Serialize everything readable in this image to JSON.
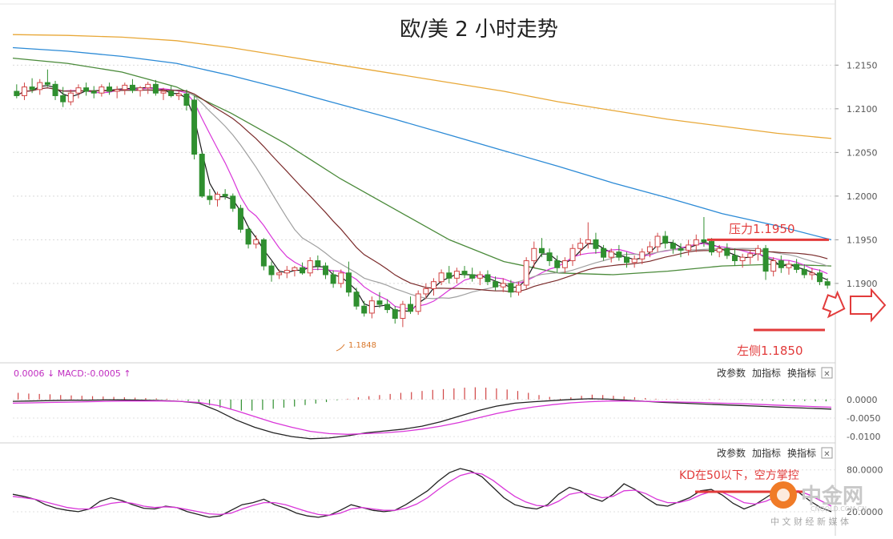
{
  "chart_data": {
    "type": "candlestick",
    "title": "欧/美 2 小时走势",
    "ylim": [
      1.181,
      1.222
    ],
    "y_ticks": [
      1.215,
      1.21,
      1.205,
      1.2,
      1.195,
      1.19
    ],
    "y_tick_labels": [
      "1.2150",
      "1.2100",
      "1.2050",
      "1.2000",
      "1.1950",
      "1.1900"
    ],
    "candles": [
      [
        1.212,
        1.2128,
        1.2112,
        1.2115
      ],
      [
        1.2115,
        1.213,
        1.211,
        1.2125
      ],
      [
        1.2125,
        1.2135,
        1.2118,
        1.2122
      ],
      [
        1.2122,
        1.2134,
        1.2116,
        1.213
      ],
      [
        1.213,
        1.2145,
        1.2125,
        1.2128
      ],
      [
        1.2128,
        1.2132,
        1.211,
        1.2115
      ],
      [
        1.2115,
        1.2125,
        1.2102,
        1.2108
      ],
      [
        1.2108,
        1.2122,
        1.2104,
        1.2118
      ],
      [
        1.2118,
        1.2128,
        1.2112,
        1.2124
      ],
      [
        1.2124,
        1.213,
        1.2115,
        1.212
      ],
      [
        1.212,
        1.2126,
        1.2112,
        1.2118
      ],
      [
        1.2118,
        1.2128,
        1.2114,
        1.2125
      ],
      [
        1.2125,
        1.213,
        1.2116,
        1.212
      ],
      [
        1.212,
        1.2126,
        1.2112,
        1.2122
      ],
      [
        1.2122,
        1.213,
        1.2116,
        1.2127
      ],
      [
        1.2127,
        1.2134,
        1.2118,
        1.2121
      ],
      [
        1.2121,
        1.2126,
        1.2114,
        1.2124
      ],
      [
        1.2124,
        1.2131,
        1.2117,
        1.2128
      ],
      [
        1.2128,
        1.2133,
        1.2115,
        1.2118
      ],
      [
        1.2118,
        1.2124,
        1.211,
        1.212
      ],
      [
        1.212,
        1.2126,
        1.2113,
        1.2115
      ],
      [
        1.2115,
        1.212,
        1.211,
        1.2117
      ],
      [
        1.2117,
        1.2122,
        1.2098,
        1.2104
      ],
      [
        1.211,
        1.2115,
        1.2042,
        1.2048
      ],
      [
        1.2048,
        1.205,
        1.1998,
        1.2
      ],
      [
        1.2,
        1.2008,
        1.199,
        1.1996
      ],
      [
        1.1996,
        1.2005,
        1.1988,
        1.2002
      ],
      [
        1.2002,
        1.2008,
        1.1996,
        1.2
      ],
      [
        1.2,
        1.2003,
        1.1982,
        1.1986
      ],
      [
        1.1986,
        1.199,
        1.1958,
        1.1962
      ],
      [
        1.1962,
        1.1966,
        1.194,
        1.1945
      ],
      [
        1.1945,
        1.1955,
        1.194,
        1.195
      ],
      [
        1.195,
        1.1952,
        1.1915,
        1.192
      ],
      [
        1.192,
        1.1925,
        1.1902,
        1.191
      ],
      [
        1.191,
        1.1916,
        1.1905,
        1.1912
      ],
      [
        1.1912,
        1.192,
        1.1906,
        1.1915
      ],
      [
        1.1915,
        1.192,
        1.1908,
        1.1918
      ],
      [
        1.1918,
        1.1924,
        1.191,
        1.1912
      ],
      [
        1.1912,
        1.193,
        1.1908,
        1.1926
      ],
      [
        1.1926,
        1.1932,
        1.1915,
        1.192
      ],
      [
        1.192,
        1.1924,
        1.1905,
        1.191
      ],
      [
        1.191,
        1.1915,
        1.1895,
        1.19
      ],
      [
        1.19,
        1.1916,
        1.1895,
        1.1912
      ],
      [
        1.1912,
        1.1925,
        1.1885,
        1.189
      ],
      [
        1.189,
        1.1895,
        1.187,
        1.1874
      ],
      [
        1.1874,
        1.188,
        1.1862,
        1.1866
      ],
      [
        1.1866,
        1.1885,
        1.186,
        1.188
      ],
      [
        1.188,
        1.189,
        1.1872,
        1.1876
      ],
      [
        1.1876,
        1.1882,
        1.1866,
        1.187
      ],
      [
        1.187,
        1.1874,
        1.1854,
        1.186
      ],
      [
        1.186,
        1.188,
        1.185,
        1.1876
      ],
      [
        1.1876,
        1.1885,
        1.1865,
        1.1868
      ],
      [
        1.1868,
        1.1892,
        1.1864,
        1.1888
      ],
      [
        1.1888,
        1.19,
        1.1882,
        1.1894
      ],
      [
        1.1894,
        1.1906,
        1.1886,
        1.1902
      ],
      [
        1.1902,
        1.1916,
        1.1898,
        1.1912
      ],
      [
        1.1912,
        1.192,
        1.19,
        1.1906
      ],
      [
        1.1906,
        1.1918,
        1.19,
        1.1914
      ],
      [
        1.1914,
        1.192,
        1.1906,
        1.191
      ],
      [
        1.191,
        1.1918,
        1.1902,
        1.1906
      ],
      [
        1.1906,
        1.1914,
        1.1898,
        1.191
      ],
      [
        1.191,
        1.1915,
        1.1898,
        1.1902
      ],
      [
        1.1902,
        1.1908,
        1.1892,
        1.1896
      ],
      [
        1.1896,
        1.1906,
        1.189,
        1.19
      ],
      [
        1.19,
        1.1904,
        1.1884,
        1.189
      ],
      [
        1.189,
        1.1902,
        1.1886,
        1.1898
      ],
      [
        1.1898,
        1.193,
        1.1894,
        1.1926
      ],
      [
        1.1926,
        1.1948,
        1.1918,
        1.194
      ],
      [
        1.194,
        1.1952,
        1.193,
        1.1935
      ],
      [
        1.1935,
        1.194,
        1.192,
        1.1926
      ],
      [
        1.1926,
        1.1932,
        1.1912,
        1.1918
      ],
      [
        1.1918,
        1.193,
        1.1912,
        1.1926
      ],
      [
        1.1926,
        1.1945,
        1.192,
        1.194
      ],
      [
        1.194,
        1.1952,
        1.1932,
        1.1946
      ],
      [
        1.1946,
        1.197,
        1.194,
        1.195
      ],
      [
        1.195,
        1.1958,
        1.1934,
        1.194
      ],
      [
        1.194,
        1.1944,
        1.1926,
        1.193
      ],
      [
        1.193,
        1.194,
        1.1924,
        1.1936
      ],
      [
        1.1936,
        1.1944,
        1.1926,
        1.193
      ],
      [
        1.193,
        1.1936,
        1.1918,
        1.1924
      ],
      [
        1.1924,
        1.1932,
        1.1918,
        1.1928
      ],
      [
        1.1928,
        1.194,
        1.1922,
        1.1936
      ],
      [
        1.1936,
        1.1948,
        1.193,
        1.1942
      ],
      [
        1.1942,
        1.1958,
        1.1936,
        1.1954
      ],
      [
        1.1954,
        1.196,
        1.194,
        1.1946
      ],
      [
        1.1946,
        1.195,
        1.1934,
        1.194
      ],
      [
        1.194,
        1.1946,
        1.193,
        1.1938
      ],
      [
        1.1938,
        1.195,
        1.1932,
        1.1944
      ],
      [
        1.1944,
        1.1956,
        1.1936,
        1.195
      ],
      [
        1.195,
        1.1976,
        1.1942,
        1.1948
      ],
      [
        1.1948,
        1.1952,
        1.1932,
        1.1936
      ],
      [
        1.1936,
        1.1944,
        1.193,
        1.194
      ],
      [
        1.194,
        1.1946,
        1.1928,
        1.1932
      ],
      [
        1.1932,
        1.194,
        1.192,
        1.1926
      ],
      [
        1.1926,
        1.1934,
        1.1918,
        1.193
      ],
      [
        1.193,
        1.1938,
        1.1922,
        1.1934
      ],
      [
        1.1934,
        1.1944,
        1.1926,
        1.194
      ],
      [
        1.194,
        1.1944,
        1.1904,
        1.1914
      ],
      [
        1.1914,
        1.193,
        1.1908,
        1.1926
      ],
      [
        1.1926,
        1.1932,
        1.1912,
        1.1918
      ],
      [
        1.1918,
        1.1926,
        1.191,
        1.1922
      ],
      [
        1.1922,
        1.1928,
        1.1912,
        1.1916
      ],
      [
        1.1916,
        1.1922,
        1.1906,
        1.191
      ],
      [
        1.191,
        1.1918,
        1.1904,
        1.1912
      ],
      [
        1.1912,
        1.1916,
        1.1898,
        1.1902
      ],
      [
        1.1902,
        1.1906,
        1.1894,
        1.1898
      ]
    ],
    "moving_averages": [
      {
        "color": "#1a1a1a",
        "smooth": 3
      },
      {
        "color": "#d936d9",
        "smooth": 7
      },
      {
        "color": "#a0a0a0",
        "smooth": 14
      },
      {
        "color": "#7a2a2a",
        "smooth": 22
      }
    ],
    "long_averages": [
      {
        "color": "#4a8a3a",
        "values": [
          1.2158,
          1.2152,
          1.2142,
          1.2125,
          1.2095,
          1.206,
          1.202,
          1.1985,
          1.195,
          1.1925,
          1.1912,
          1.191,
          1.1914,
          1.192,
          1.1922,
          1.192
        ]
      },
      {
        "color": "#2b8ad6",
        "values": [
          1.217,
          1.2166,
          1.216,
          1.2152,
          1.2138,
          1.2122,
          1.2105,
          1.2088,
          1.207,
          1.2052,
          1.2034,
          1.2015,
          1.1998,
          1.198,
          1.1966,
          1.195
        ]
      },
      {
        "color": "#e8a838",
        "values": [
          1.2185,
          1.2184,
          1.2182,
          1.2178,
          1.217,
          1.216,
          1.215,
          1.214,
          1.213,
          1.212,
          1.2108,
          1.2098,
          1.2088,
          1.208,
          1.2072,
          1.2066
        ]
      }
    ],
    "annotations": {
      "low_label": "1.1848",
      "resistance_label": "压力1.1950",
      "support_label": "左侧1.1850",
      "kd_note": "KD在50以下，空方掌控"
    },
    "macd": {
      "header": "0.0006 ↓ MACD:-0.0005 ↑",
      "ylim": [
        -0.0115,
        0.0045
      ],
      "y_ticks": [
        0.0,
        -0.005,
        -0.01
      ],
      "y_tick_labels": [
        "0.0000",
        "-0.0050",
        "-0.0100"
      ],
      "histogram": [
        0.0018,
        0.0016,
        0.0015,
        0.0014,
        0.0012,
        0.0011,
        0.001,
        0.0009,
        0.0008,
        0.0007,
        0.0006,
        0.0005,
        0.0004,
        0.0003,
        0.0002,
        0.0001,
        -0.0004,
        -0.001,
        -0.0016,
        -0.0022,
        -0.0026,
        -0.003,
        -0.003,
        -0.0028,
        -0.0025,
        -0.0022,
        -0.0019,
        -0.0015,
        -0.0011,
        -0.0007,
        -0.0002,
        0.0002,
        0.0006,
        0.0009,
        0.0012,
        0.0015,
        0.0018,
        0.002,
        0.0023,
        0.0026,
        0.0028,
        0.003,
        0.0032,
        0.0033,
        0.0032,
        0.003,
        0.0027,
        0.0023,
        0.0018,
        0.0012,
        0.0007,
        0.0002,
        0.0006,
        0.001,
        0.0013,
        0.0012,
        0.001,
        0.0008,
        0.0006,
        0.0004,
        0.0002,
        0.0001,
        0.0001,
        0.0,
        0.0,
        0.0001,
        0.0001,
        0.0,
        -0.0001,
        -0.0001,
        -0.0002,
        -0.0003,
        -0.0003,
        -0.0004,
        -0.0004,
        -0.0005,
        -0.0005
      ],
      "dif": [
        -0.0005,
        -0.0004,
        -0.0003,
        -0.0002,
        -0.0002,
        -0.0001,
        -0.0001,
        -0.0002,
        -0.0003,
        -0.0005,
        -0.001,
        -0.003,
        -0.0055,
        -0.0075,
        -0.009,
        -0.01,
        -0.0106,
        -0.0104,
        -0.0098,
        -0.009,
        -0.0085,
        -0.008,
        -0.0072,
        -0.006,
        -0.0045,
        -0.003,
        -0.0018,
        -0.001,
        -0.0006,
        -0.0003,
        0.0,
        0.0002,
        0.0001,
        -0.0002,
        -0.0005,
        -0.0008,
        -0.001,
        -0.0012,
        -0.0014,
        -0.0016,
        -0.0018,
        -0.002,
        -0.0022,
        -0.0024,
        -0.0026
      ],
      "dea": [
        -0.001,
        -0.0009,
        -0.0008,
        -0.0007,
        -0.0006,
        -0.0005,
        -0.0004,
        -0.0004,
        -0.0004,
        -0.0005,
        -0.0008,
        -0.0016,
        -0.003,
        -0.0046,
        -0.0062,
        -0.0075,
        -0.0086,
        -0.0092,
        -0.0094,
        -0.0092,
        -0.009,
        -0.0086,
        -0.008,
        -0.0072,
        -0.0062,
        -0.005,
        -0.0038,
        -0.0028,
        -0.002,
        -0.0014,
        -0.0009,
        -0.0006,
        -0.0004,
        -0.0004,
        -0.0005,
        -0.0006,
        -0.0007,
        -0.0008,
        -0.001,
        -0.0011,
        -0.0013,
        -0.0015,
        -0.0017,
        -0.0019,
        -0.0021
      ]
    },
    "kd": {
      "ylim": [
        5,
        90
      ],
      "y_ticks": [
        80,
        20
      ],
      "y_tick_labels": [
        "80.0000",
        "20.0000"
      ],
      "k": [
        45,
        42,
        38,
        30,
        25,
        22,
        20,
        24,
        35,
        40,
        36,
        30,
        25,
        24,
        28,
        26,
        20,
        16,
        12,
        14,
        22,
        30,
        33,
        38,
        30,
        25,
        18,
        14,
        12,
        15,
        22,
        30,
        26,
        22,
        20,
        22,
        30,
        40,
        50,
        64,
        76,
        82,
        78,
        70,
        55,
        40,
        30,
        26,
        24,
        30,
        45,
        55,
        50,
        40,
        35,
        45,
        60,
        52,
        40,
        30,
        28,
        34,
        40,
        50,
        52,
        44,
        32,
        24,
        30,
        40,
        50,
        55,
        48,
        36,
        26,
        20
      ],
      "d": [
        42,
        40,
        38,
        34,
        30,
        26,
        24,
        24,
        28,
        32,
        34,
        32,
        28,
        26,
        27,
        26,
        23,
        20,
        17,
        16,
        18,
        24,
        29,
        33,
        33,
        30,
        25,
        20,
        16,
        15,
        18,
        24,
        26,
        24,
        22,
        22,
        25,
        31,
        40,
        52,
        63,
        72,
        76,
        74,
        65,
        53,
        42,
        34,
        29,
        28,
        35,
        45,
        48,
        45,
        40,
        42,
        50,
        51,
        46,
        38,
        33,
        33,
        37,
        44,
        49,
        48,
        41,
        33,
        31,
        35,
        42,
        49,
        50,
        44,
        36,
        28
      ]
    },
    "toolbar": {
      "params": "改参数",
      "add_indicator": "加指标",
      "switch_indicator": "换指标",
      "close": "✕"
    },
    "watermark": {
      "brand": "中金网",
      "domain": "CNGOLD.COM.CN",
      "slogan": "中 文 财 经 新 媒 体"
    }
  }
}
